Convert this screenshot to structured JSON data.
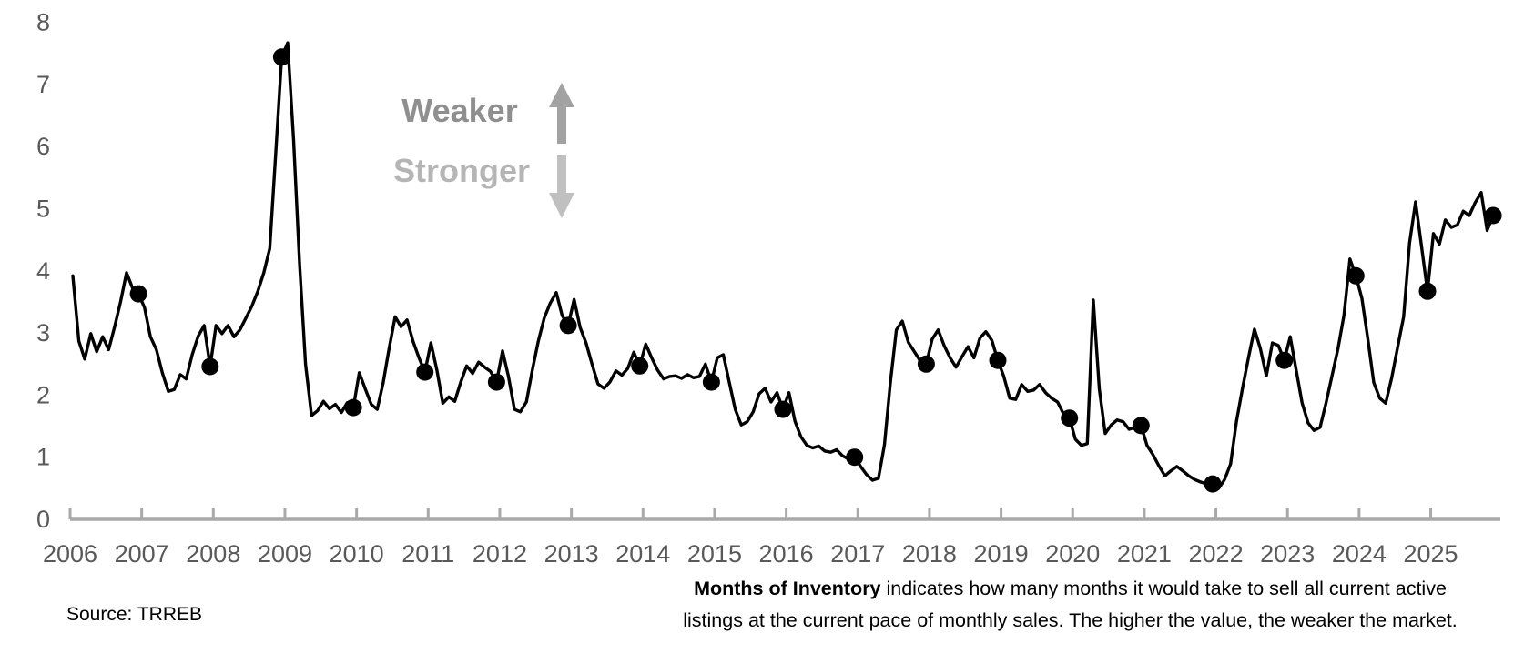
{
  "chart": {
    "source_note": "Source: TRREB",
    "description": {
      "bold_lead": "Months of Inventory",
      "line1_rest": " indicates how many months it would take to sell all current active",
      "line2": "listings at the current pace of monthly sales. The higher the value, the weaker the market."
    },
    "annotations": {
      "weaker": {
        "label": "Weaker",
        "text_color": "#8f8f8f",
        "arrow_color": "#a2a2a2",
        "direction": "up"
      },
      "stronger": {
        "label": "Stronger",
        "text_color": "#b5b5b5",
        "arrow_color": "#c0c0c0",
        "direction": "down"
      }
    }
  },
  "chart_data": {
    "type": "line",
    "series_name": "Months of Inventory",
    "x_start": "2006-01",
    "x_end": "2025-11",
    "frequency": "monthly",
    "ylim": [
      0,
      8
    ],
    "yticks": [
      0,
      1,
      2,
      3,
      4,
      5,
      6,
      7,
      8
    ],
    "x_tick_labels": [
      "2006",
      "2007",
      "2008",
      "2009",
      "2010",
      "2011",
      "2012",
      "2013",
      "2014",
      "2015",
      "2016",
      "2017",
      "2018",
      "2019",
      "2020",
      "2021",
      "2022",
      "2023",
      "2024",
      "2025"
    ],
    "grid": false,
    "legend": "none",
    "line_color": "#000000",
    "marker_color": "#000000",
    "axis_color": "#a9a9a9",
    "tick_label_color": "#595959",
    "values_by_year": {
      "2006": [
        3.92,
        2.87,
        2.58,
        2.99,
        2.7,
        2.94,
        2.73,
        3.1,
        3.5,
        3.97,
        3.72,
        3.63
      ],
      "2007": [
        3.41,
        2.94,
        2.73,
        2.36,
        2.06,
        2.09,
        2.33,
        2.26,
        2.65,
        2.95,
        3.12,
        2.46
      ],
      "2008": [
        3.12,
        2.99,
        3.12,
        2.94,
        3.05,
        3.24,
        3.43,
        3.67,
        3.97,
        4.36,
        5.9,
        7.44
      ],
      "2009": [
        7.67,
        6.1,
        4.1,
        2.5,
        1.67,
        1.75,
        1.9,
        1.78,
        1.85,
        1.72,
        1.88,
        1.8
      ],
      "2010": [
        2.36,
        2.1,
        1.85,
        1.77,
        2.2,
        2.75,
        3.26,
        3.1,
        3.21,
        2.87,
        2.6,
        2.37
      ],
      "2011": [
        2.84,
        2.4,
        1.87,
        1.97,
        1.9,
        2.21,
        2.47,
        2.35,
        2.53,
        2.45,
        2.38,
        2.21
      ],
      "2012": [
        2.71,
        2.3,
        1.77,
        1.73,
        1.89,
        2.4,
        2.87,
        3.24,
        3.48,
        3.65,
        3.28,
        3.12
      ],
      "2013": [
        3.54,
        3.09,
        2.84,
        2.5,
        2.18,
        2.11,
        2.21,
        2.39,
        2.32,
        2.43,
        2.69,
        2.47
      ],
      "2014": [
        2.82,
        2.6,
        2.4,
        2.26,
        2.3,
        2.31,
        2.27,
        2.33,
        2.28,
        2.3,
        2.5,
        2.21
      ],
      "2015": [
        2.6,
        2.65,
        2.21,
        1.77,
        1.52,
        1.57,
        1.73,
        2.02,
        2.11,
        1.89,
        2.04,
        1.77
      ],
      "2016": [
        2.04,
        1.58,
        1.33,
        1.19,
        1.15,
        1.18,
        1.1,
        1.08,
        1.12,
        1.02,
        0.97,
        1.0
      ],
      "2017": [
        0.85,
        0.72,
        0.63,
        0.66,
        1.2,
        2.2,
        3.05,
        3.19,
        2.85,
        2.7,
        2.55,
        2.5
      ],
      "2018": [
        2.9,
        3.05,
        2.8,
        2.6,
        2.45,
        2.62,
        2.78,
        2.6,
        2.92,
        3.02,
        2.88,
        2.56
      ],
      "2019": [
        2.3,
        1.95,
        1.93,
        2.17,
        2.06,
        2.08,
        2.17,
        2.04,
        1.95,
        1.89,
        1.7,
        1.63
      ],
      "2020": [
        1.29,
        1.19,
        1.22,
        3.53,
        2.1,
        1.38,
        1.52,
        1.6,
        1.57,
        1.45,
        1.48,
        1.51
      ],
      "2021": [
        1.19,
        1.04,
        0.86,
        0.7,
        0.78,
        0.85,
        0.78,
        0.7,
        0.64,
        0.6,
        0.57,
        0.57
      ],
      "2022": [
        0.5,
        0.64,
        0.89,
        1.58,
        2.11,
        2.6,
        3.06,
        2.75,
        2.31,
        2.84,
        2.8,
        2.56
      ],
      "2023": [
        2.94,
        2.4,
        1.87,
        1.55,
        1.43,
        1.48,
        1.87,
        2.31,
        2.75,
        3.28,
        4.19,
        3.92
      ],
      "2024": [
        3.56,
        2.91,
        2.2,
        1.95,
        1.87,
        2.28,
        2.77,
        3.26,
        4.45,
        5.11,
        4.4,
        3.67
      ],
      "2025": [
        4.6,
        4.43,
        4.82,
        4.7,
        4.74,
        4.96,
        4.89,
        5.1,
        5.26,
        4.65,
        4.89
      ]
    },
    "marker_month_indices": [
      11,
      23,
      35,
      47,
      59,
      71,
      83,
      95,
      107,
      119,
      131,
      143,
      155,
      167,
      179,
      191,
      203,
      215,
      227,
      238
    ],
    "highlighted_points": [
      {
        "month": "2006-12",
        "value": 3.63
      },
      {
        "month": "2007-12",
        "value": 2.46
      },
      {
        "month": "2008-12",
        "value": 7.44
      },
      {
        "month": "2009-12",
        "value": 1.8
      },
      {
        "month": "2010-12",
        "value": 2.37
      },
      {
        "month": "2011-12",
        "value": 2.21
      },
      {
        "month": "2012-12",
        "value": 3.12
      },
      {
        "month": "2013-12",
        "value": 2.47
      },
      {
        "month": "2014-12",
        "value": 2.21
      },
      {
        "month": "2015-12",
        "value": 1.77
      },
      {
        "month": "2016-12",
        "value": 1.0
      },
      {
        "month": "2017-12",
        "value": 2.5
      },
      {
        "month": "2018-12",
        "value": 2.56
      },
      {
        "month": "2019-12",
        "value": 1.63
      },
      {
        "month": "2020-12",
        "value": 1.51
      },
      {
        "month": "2021-12",
        "value": 0.57
      },
      {
        "month": "2022-12",
        "value": 2.56
      },
      {
        "month": "2023-12",
        "value": 3.92
      },
      {
        "month": "2024-12",
        "value": 3.67
      },
      {
        "month": "2025-11",
        "value": 4.89
      }
    ]
  }
}
